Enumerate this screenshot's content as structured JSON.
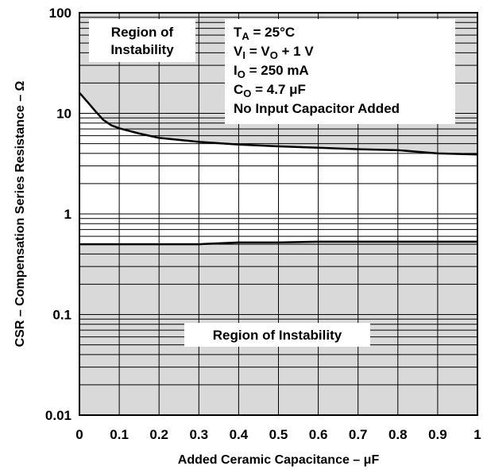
{
  "chart_data": {
    "type": "line",
    "xlabel": "Added Ceramic Capacitance – μF",
    "ylabel": "CSR – Compensation Series Resistance – Ω",
    "x_ticks": [
      "0",
      "0.1",
      "0.2",
      "0.3",
      "0.4",
      "0.5",
      "0.6",
      "0.7",
      "0.8",
      "0.9",
      "1"
    ],
    "y_ticks": [
      "0.01",
      "0.1",
      "1",
      "10",
      "100"
    ],
    "xlim": [
      0,
      1
    ],
    "ylim": [
      0.01,
      100
    ],
    "y_scale": "log",
    "grid": true,
    "series": [
      {
        "x": [
          0,
          0.02,
          0.04,
          0.06,
          0.08,
          0.1,
          0.15,
          0.2,
          0.3,
          0.4,
          0.5,
          0.6,
          0.7,
          0.8,
          0.9,
          1.0
        ],
        "y": [
          16,
          13,
          10.5,
          8.6,
          7.6,
          7.1,
          6.3,
          5.7,
          5.2,
          4.9,
          4.7,
          4.55,
          4.4,
          4.3,
          4.0,
          3.9
        ]
      },
      {
        "x": [
          0,
          0.1,
          0.2,
          0.3,
          0.4,
          0.5,
          0.6,
          0.7,
          0.8,
          0.9,
          1.0
        ],
        "y": [
          0.5,
          0.5,
          0.5,
          0.5,
          0.52,
          0.52,
          0.53,
          0.53,
          0.53,
          0.53,
          0.53
        ]
      }
    ],
    "regions": [
      {
        "label": "Region of Instability",
        "from": "upper-curve",
        "to": "top"
      },
      {
        "label": "Region of Instability",
        "from": "bottom",
        "to": "lower-curve"
      }
    ],
    "conditions": [
      {
        "main": "T",
        "sub": "A",
        "rest": " = 25°C"
      },
      {
        "main": "V",
        "sub": "I",
        "rest": " = V",
        "sub2": "O",
        "rest2": " + 1 V"
      },
      {
        "main": "I",
        "sub": "O",
        "rest": " = 250 mA"
      },
      {
        "main": "C",
        "sub": "O",
        "rest": " = 4.7 μF"
      },
      {
        "main": "No Input Capacitor Added",
        "sub": "",
        "rest": ""
      }
    ],
    "region_color": "#d9d9d9"
  }
}
